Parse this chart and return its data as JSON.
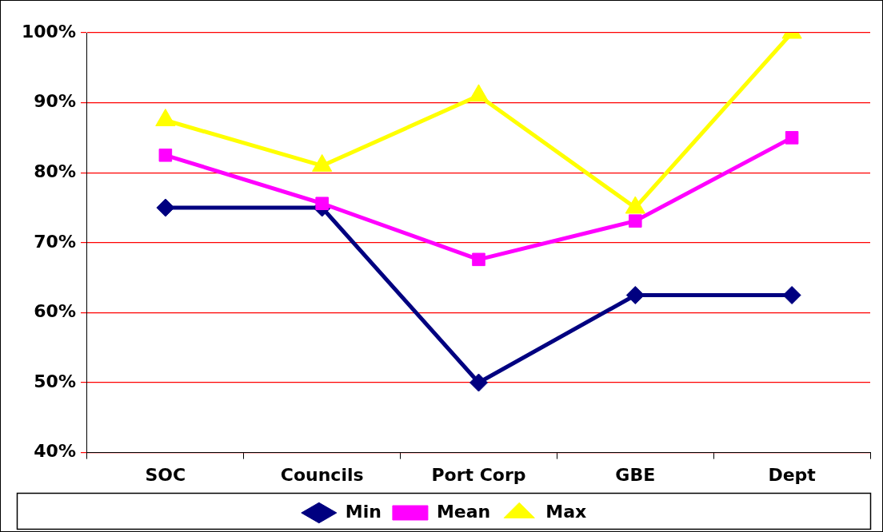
{
  "chart_data": {
    "type": "line",
    "categories": [
      "SOC",
      "Councils",
      "Port Corp",
      "GBE",
      "Dept"
    ],
    "series": [
      {
        "name": "Min",
        "color": "#000080",
        "marker": "diamond",
        "values": [
          75,
          75,
          50,
          62.5,
          62.5
        ]
      },
      {
        "name": "Mean",
        "color": "#ff00ff",
        "marker": "square",
        "values": [
          82.5,
          75.6,
          67.6,
          73.1,
          85
        ]
      },
      {
        "name": "Max",
        "color": "#ffff00",
        "marker": "triangle",
        "values": [
          87.5,
          81,
          91,
          75,
          100
        ]
      }
    ],
    "ylim": [
      40,
      100
    ],
    "yticks": [
      {
        "value": 40,
        "label": "40%"
      },
      {
        "value": 50,
        "label": "50%"
      },
      {
        "value": 60,
        "label": "60%"
      },
      {
        "value": 70,
        "label": "70%"
      },
      {
        "value": 80,
        "label": "80%"
      },
      {
        "value": 90,
        "label": "90%"
      },
      {
        "value": 100,
        "label": "100%"
      }
    ],
    "grid": "y",
    "legend": "bottom",
    "line_style": "solid"
  }
}
